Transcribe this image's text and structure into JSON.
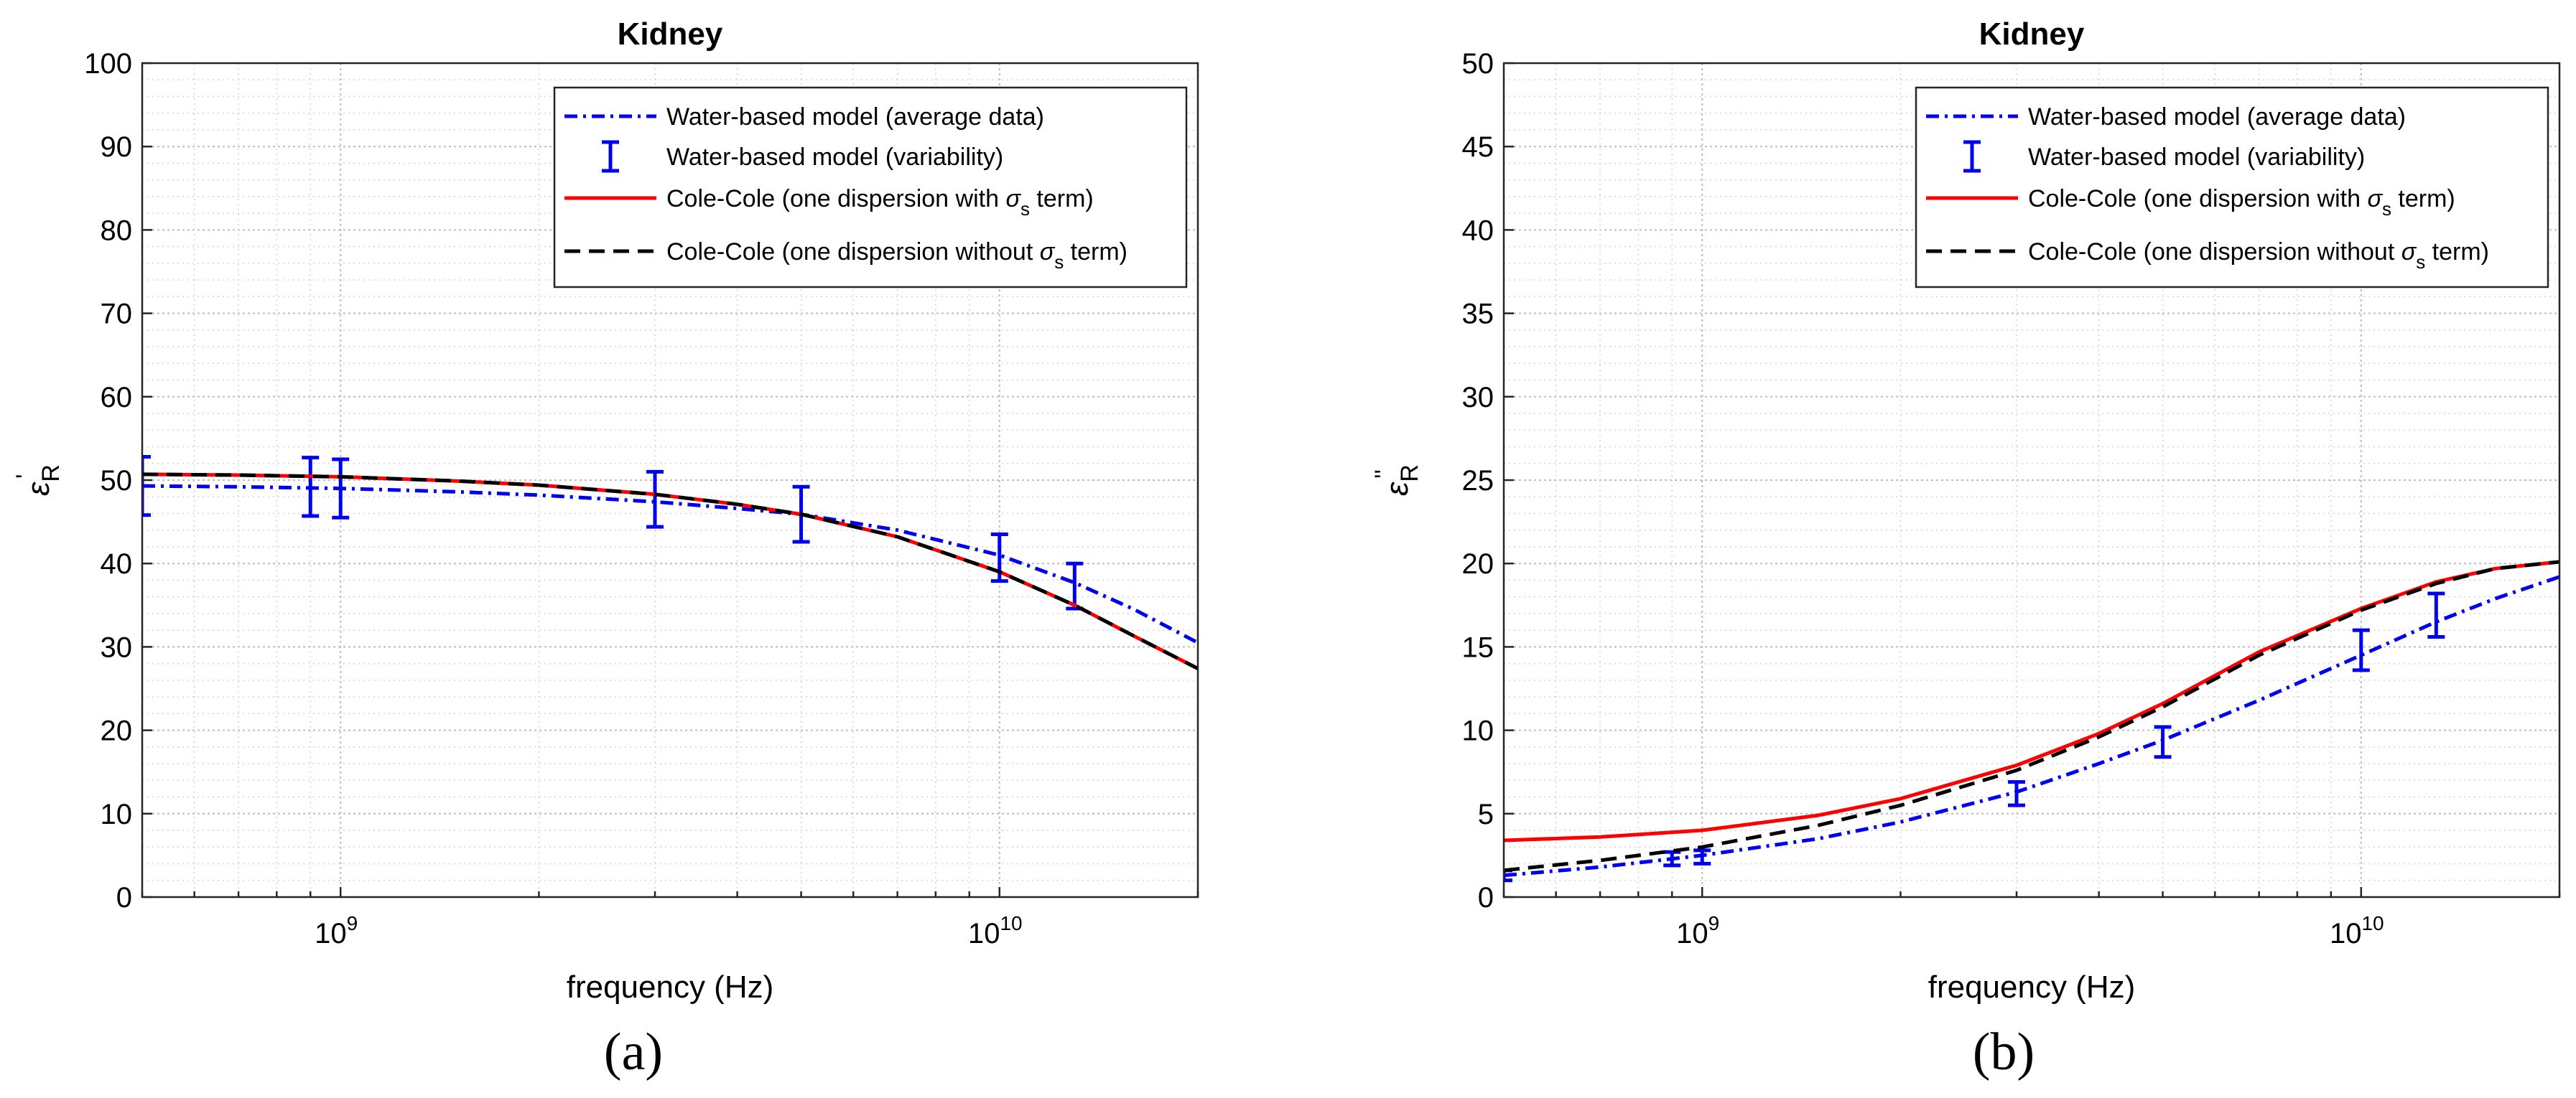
{
  "chart_data": [
    {
      "type": "line",
      "panel_label": "(a)",
      "title": "Kidney",
      "xlabel": "frequency (Hz)",
      "ylabel": "ε'_R",
      "ylabel_main": "ε",
      "ylabel_sub": "R",
      "ylabel_sup": "'",
      "xscale": "log",
      "xlim": [
        500000000,
        20000000000
      ],
      "ylim": [
        0,
        100
      ],
      "yticks": [
        0,
        10,
        20,
        30,
        40,
        50,
        60,
        70,
        80,
        90,
        100
      ],
      "xtick_labels": [
        {
          "base": "10",
          "exp": "9",
          "value": 1000000000
        },
        {
          "base": "10",
          "exp": "10",
          "value": 10000000000
        }
      ],
      "grid": true,
      "legend_position": "top-right",
      "series": [
        {
          "name": "Water-based model (average data)",
          "style": "dashdot",
          "color": "#0000ee",
          "x": [
            500000000,
            700000000,
            1000000000,
            1500000000,
            2000000000,
            3000000000,
            4000000000,
            5000000000,
            7000000000,
            10000000000,
            13000000000,
            16000000000,
            20000000000
          ],
          "y": [
            49.3,
            49.2,
            49.0,
            48.6,
            48.2,
            47.4,
            46.6,
            45.9,
            44.0,
            41.0,
            37.7,
            34.5,
            30.5
          ]
        },
        {
          "name": "Water-based model (variability)",
          "style": "errorbar",
          "color": "#0000ee",
          "x": [
            500000000,
            900000000,
            1000000000,
            3000000000,
            5000000000,
            10000000000,
            13000000000
          ],
          "y": [
            49.3,
            49.2,
            49.0,
            47.7,
            45.9,
            40.7,
            37.3
          ],
          "err": [
            3.5,
            3.5,
            3.5,
            3.3,
            3.3,
            2.8,
            2.7
          ]
        },
        {
          "name": "Cole-Cole (one dispersion with σs term)",
          "name_prefix": "Cole-Cole (one dispersion with ",
          "name_sigma": "σ",
          "name_sub": "s",
          "name_suffix": " term)",
          "style": "solid",
          "color": "#ff0000",
          "x": [
            500000000,
            700000000,
            1000000000,
            1500000000,
            2000000000,
            3000000000,
            4000000000,
            5000000000,
            7000000000,
            10000000000,
            13000000000,
            16000000000,
            20000000000
          ],
          "y": [
            50.7,
            50.6,
            50.4,
            49.9,
            49.4,
            48.3,
            47.1,
            45.9,
            43.2,
            39.0,
            35.0,
            31.3,
            27.4
          ]
        },
        {
          "name": "Cole-Cole (one dispersion without σs term)",
          "name_prefix": "Cole-Cole (one dispersion without ",
          "name_sigma": "σ",
          "name_sub": "s",
          "name_suffix": " term)",
          "style": "dashed",
          "color": "#000000",
          "x": [
            500000000,
            700000000,
            1000000000,
            1500000000,
            2000000000,
            3000000000,
            4000000000,
            5000000000,
            7000000000,
            10000000000,
            13000000000,
            16000000000,
            20000000000
          ],
          "y": [
            50.7,
            50.6,
            50.4,
            49.9,
            49.4,
            48.3,
            47.1,
            45.9,
            43.2,
            39.0,
            35.0,
            31.3,
            27.4
          ]
        }
      ]
    },
    {
      "type": "line",
      "panel_label": "(b)",
      "title": "Kidney",
      "xlabel": "frequency (Hz)",
      "ylabel": "ε''_R",
      "ylabel_main": "ε",
      "ylabel_sub": "R",
      "ylabel_sup": "''",
      "xscale": "log",
      "xlim": [
        500000000,
        20000000000
      ],
      "ylim": [
        0,
        50
      ],
      "yticks": [
        0,
        5,
        10,
        15,
        20,
        25,
        30,
        35,
        40,
        45,
        50
      ],
      "xtick_labels": [
        {
          "base": "10",
          "exp": "9",
          "value": 1000000000
        },
        {
          "base": "10",
          "exp": "10",
          "value": 10000000000
        }
      ],
      "grid": true,
      "legend_position": "top-right",
      "series": [
        {
          "name": "Water-based model (average data)",
          "style": "dashdot",
          "color": "#0000ee",
          "x": [
            500000000,
            700000000,
            1000000000,
            1500000000,
            2000000000,
            3000000000,
            4000000000,
            5000000000,
            7000000000,
            10000000000,
            13000000000,
            16000000000,
            20000000000
          ],
          "y": [
            1.3,
            1.8,
            2.5,
            3.5,
            4.5,
            6.3,
            8.0,
            9.4,
            11.8,
            14.5,
            16.5,
            17.9,
            19.2
          ]
        },
        {
          "name": "Water-based model (variability)",
          "style": "errorbar",
          "color": "#0000ee",
          "x": [
            500000000,
            900000000,
            1000000000,
            3000000000,
            5000000000,
            10000000000,
            13000000000
          ],
          "y": [
            1.3,
            2.3,
            2.4,
            6.2,
            9.3,
            14.8,
            16.9
          ],
          "err": [
            0.3,
            0.4,
            0.4,
            0.7,
            0.9,
            1.2,
            1.3
          ]
        },
        {
          "name": "Cole-Cole (one dispersion with σs term)",
          "name_prefix": "Cole-Cole (one dispersion with ",
          "name_sigma": "σ",
          "name_sub": "s",
          "name_suffix": " term)",
          "style": "solid",
          "color": "#ff0000",
          "x": [
            500000000,
            700000000,
            1000000000,
            1500000000,
            2000000000,
            3000000000,
            4000000000,
            5000000000,
            7000000000,
            10000000000,
            13000000000,
            16000000000,
            20000000000
          ],
          "y": [
            3.4,
            3.6,
            4.0,
            4.9,
            5.9,
            7.9,
            9.8,
            11.6,
            14.7,
            17.3,
            18.9,
            19.7,
            20.1
          ]
        },
        {
          "name": "Cole-Cole (one dispersion without σs term)",
          "name_prefix": "Cole-Cole (one dispersion without ",
          "name_sigma": "σ",
          "name_sub": "s",
          "name_suffix": " term)",
          "style": "dashed",
          "color": "#000000",
          "x": [
            500000000,
            700000000,
            1000000000,
            1500000000,
            2000000000,
            3000000000,
            4000000000,
            5000000000,
            7000000000,
            10000000000,
            13000000000,
            16000000000,
            20000000000
          ],
          "y": [
            1.6,
            2.2,
            3.0,
            4.3,
            5.5,
            7.6,
            9.6,
            11.4,
            14.5,
            17.2,
            18.8,
            19.7,
            20.1
          ]
        }
      ]
    }
  ]
}
